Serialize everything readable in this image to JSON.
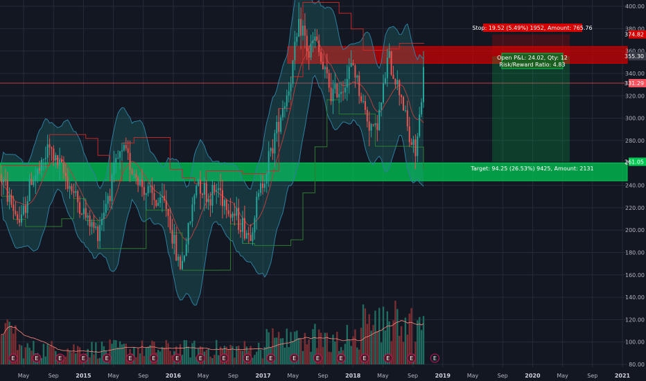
{
  "colors": {
    "background": "#131722",
    "grid": "#262b3a",
    "up": "#26a69a",
    "down": "#ef5350",
    "bb_fill": "#26a69a",
    "stop_red": "#d50000",
    "target_green": "#00c853",
    "price_line_red": "#f7525f"
  },
  "chart_data": {
    "type": "candlestick",
    "y_axis": {
      "ticks": [
        "400.00",
        "380.00",
        "360.00",
        "340.00",
        "320.00",
        "300.00",
        "280.00",
        "260.00",
        "240.00",
        "220.00",
        "200.00",
        "180.00",
        "160.00",
        "140.00",
        "120.00",
        "100.00",
        "80.00"
      ],
      "range": [
        75,
        405
      ]
    },
    "x_axis": {
      "ticks": [
        {
          "label": "May",
          "bold": false
        },
        {
          "label": "Sep",
          "bold": false
        },
        {
          "label": "2015",
          "bold": true
        },
        {
          "label": "May",
          "bold": false
        },
        {
          "label": "Sep",
          "bold": false
        },
        {
          "label": "2016",
          "bold": true
        },
        {
          "label": "May",
          "bold": false
        },
        {
          "label": "Sep",
          "bold": false
        },
        {
          "label": "2017",
          "bold": true
        },
        {
          "label": "May",
          "bold": false
        },
        {
          "label": "Sep",
          "bold": false
        },
        {
          "label": "2018",
          "bold": true
        },
        {
          "label": "May",
          "bold": false
        },
        {
          "label": "Sep",
          "bold": false
        },
        {
          "label": "2019",
          "bold": true
        },
        {
          "label": "May",
          "bold": false
        },
        {
          "label": "Sep",
          "bold": false
        },
        {
          "label": "2020",
          "bold": true
        },
        {
          "label": "May",
          "bold": false
        },
        {
          "label": "Sep",
          "bold": false
        },
        {
          "label": "2021",
          "bold": true
        }
      ]
    },
    "price_axis_labels": [
      {
        "text": "374.82",
        "price": 374.82,
        "color": "#d50000"
      },
      {
        "text": "355.30",
        "price": 355.3,
        "color": "#363a45"
      },
      {
        "text": "331.29",
        "price": 331.29,
        "color": "#f7525f"
      },
      {
        "text": "261.05",
        "price": 261.05,
        "color": "#00c853"
      }
    ],
    "position": {
      "stop_label": "Stop: 19.52 (5.49%) 1952, Amount: 765.76",
      "open_label": "Open P&L: 24.02, Qty: 12",
      "rr_label": "Risk/Reward Ratio: 4.83",
      "target_label": "Target: 94.25 (26.53%) 9425, Amount: 2131",
      "entry": 355.3,
      "stop": 374.82,
      "target": 261.05
    },
    "zones": [
      {
        "kind": "resistance",
        "from": 349,
        "to": 364
      },
      {
        "kind": "support",
        "from": 244,
        "to": 260
      }
    ],
    "price_line": 331.29,
    "earnings_marker": "E",
    "earnings_count": 19,
    "volume_ma_label": ""
  }
}
